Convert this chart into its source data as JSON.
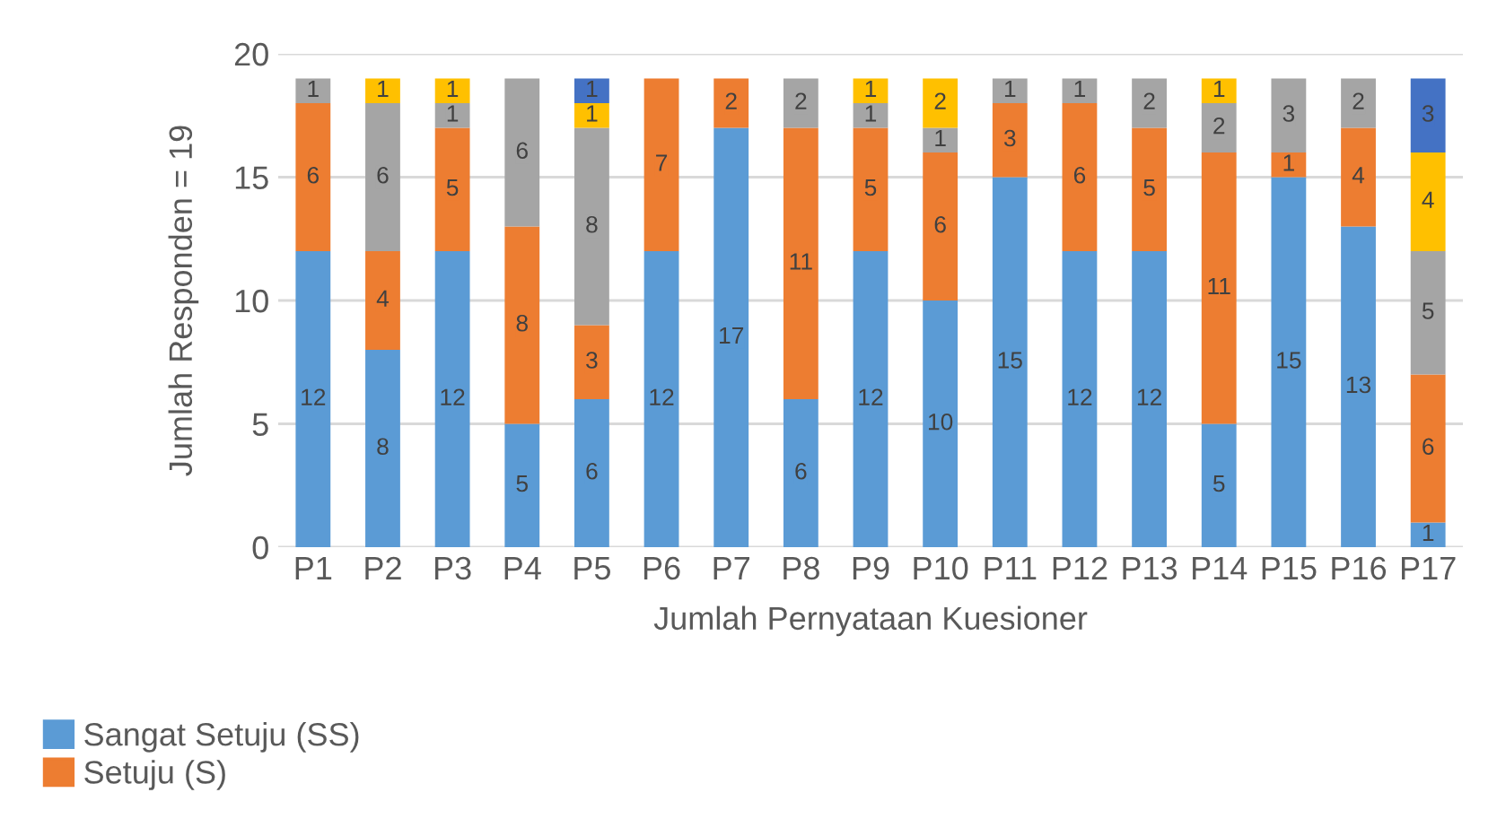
{
  "chart_data": {
    "type": "bar",
    "stacked": true,
    "xlabel": "Jumlah Pernyataan Kuesioner",
    "ylabel": "Jumlah Responden = 19",
    "categories": [
      "P1",
      "P2",
      "P3",
      "P4",
      "P5",
      "P6",
      "P7",
      "P8",
      "P9",
      "P10",
      "P11",
      "P12",
      "P13",
      "P14",
      "P15",
      "P16",
      "P17"
    ],
    "series": [
      {
        "name": "Sangat Setuju (SS)",
        "color": "#5b9bd5",
        "values": [
          12,
          8,
          12,
          5,
          6,
          12,
          17,
          6,
          12,
          10,
          15,
          12,
          12,
          5,
          15,
          13,
          1
        ]
      },
      {
        "name": "Setuju (S)",
        "color": "#ed7d31",
        "values": [
          6,
          4,
          5,
          8,
          3,
          7,
          2,
          11,
          5,
          6,
          3,
          6,
          5,
          11,
          1,
          4,
          6
        ]
      },
      {
        "color": "#a5a5a5",
        "values": [
          1,
          6,
          1,
          6,
          8,
          null,
          null,
          2,
          1,
          1,
          1,
          1,
          2,
          2,
          3,
          2,
          5
        ]
      },
      {
        "color": "#ffc000",
        "values": [
          null,
          1,
          1,
          null,
          1,
          null,
          null,
          null,
          1,
          2,
          null,
          null,
          null,
          1,
          null,
          null,
          4
        ]
      },
      {
        "color": "#4472c4",
        "values": [
          null,
          null,
          null,
          null,
          1,
          null,
          null,
          null,
          null,
          null,
          null,
          null,
          null,
          null,
          null,
          null,
          3
        ]
      }
    ],
    "ylim": [
      0,
      20
    ],
    "yticks": [
      0,
      5,
      10,
      15,
      20
    ],
    "grid": "y",
    "legend": "bottom left",
    "data_labels": true
  }
}
